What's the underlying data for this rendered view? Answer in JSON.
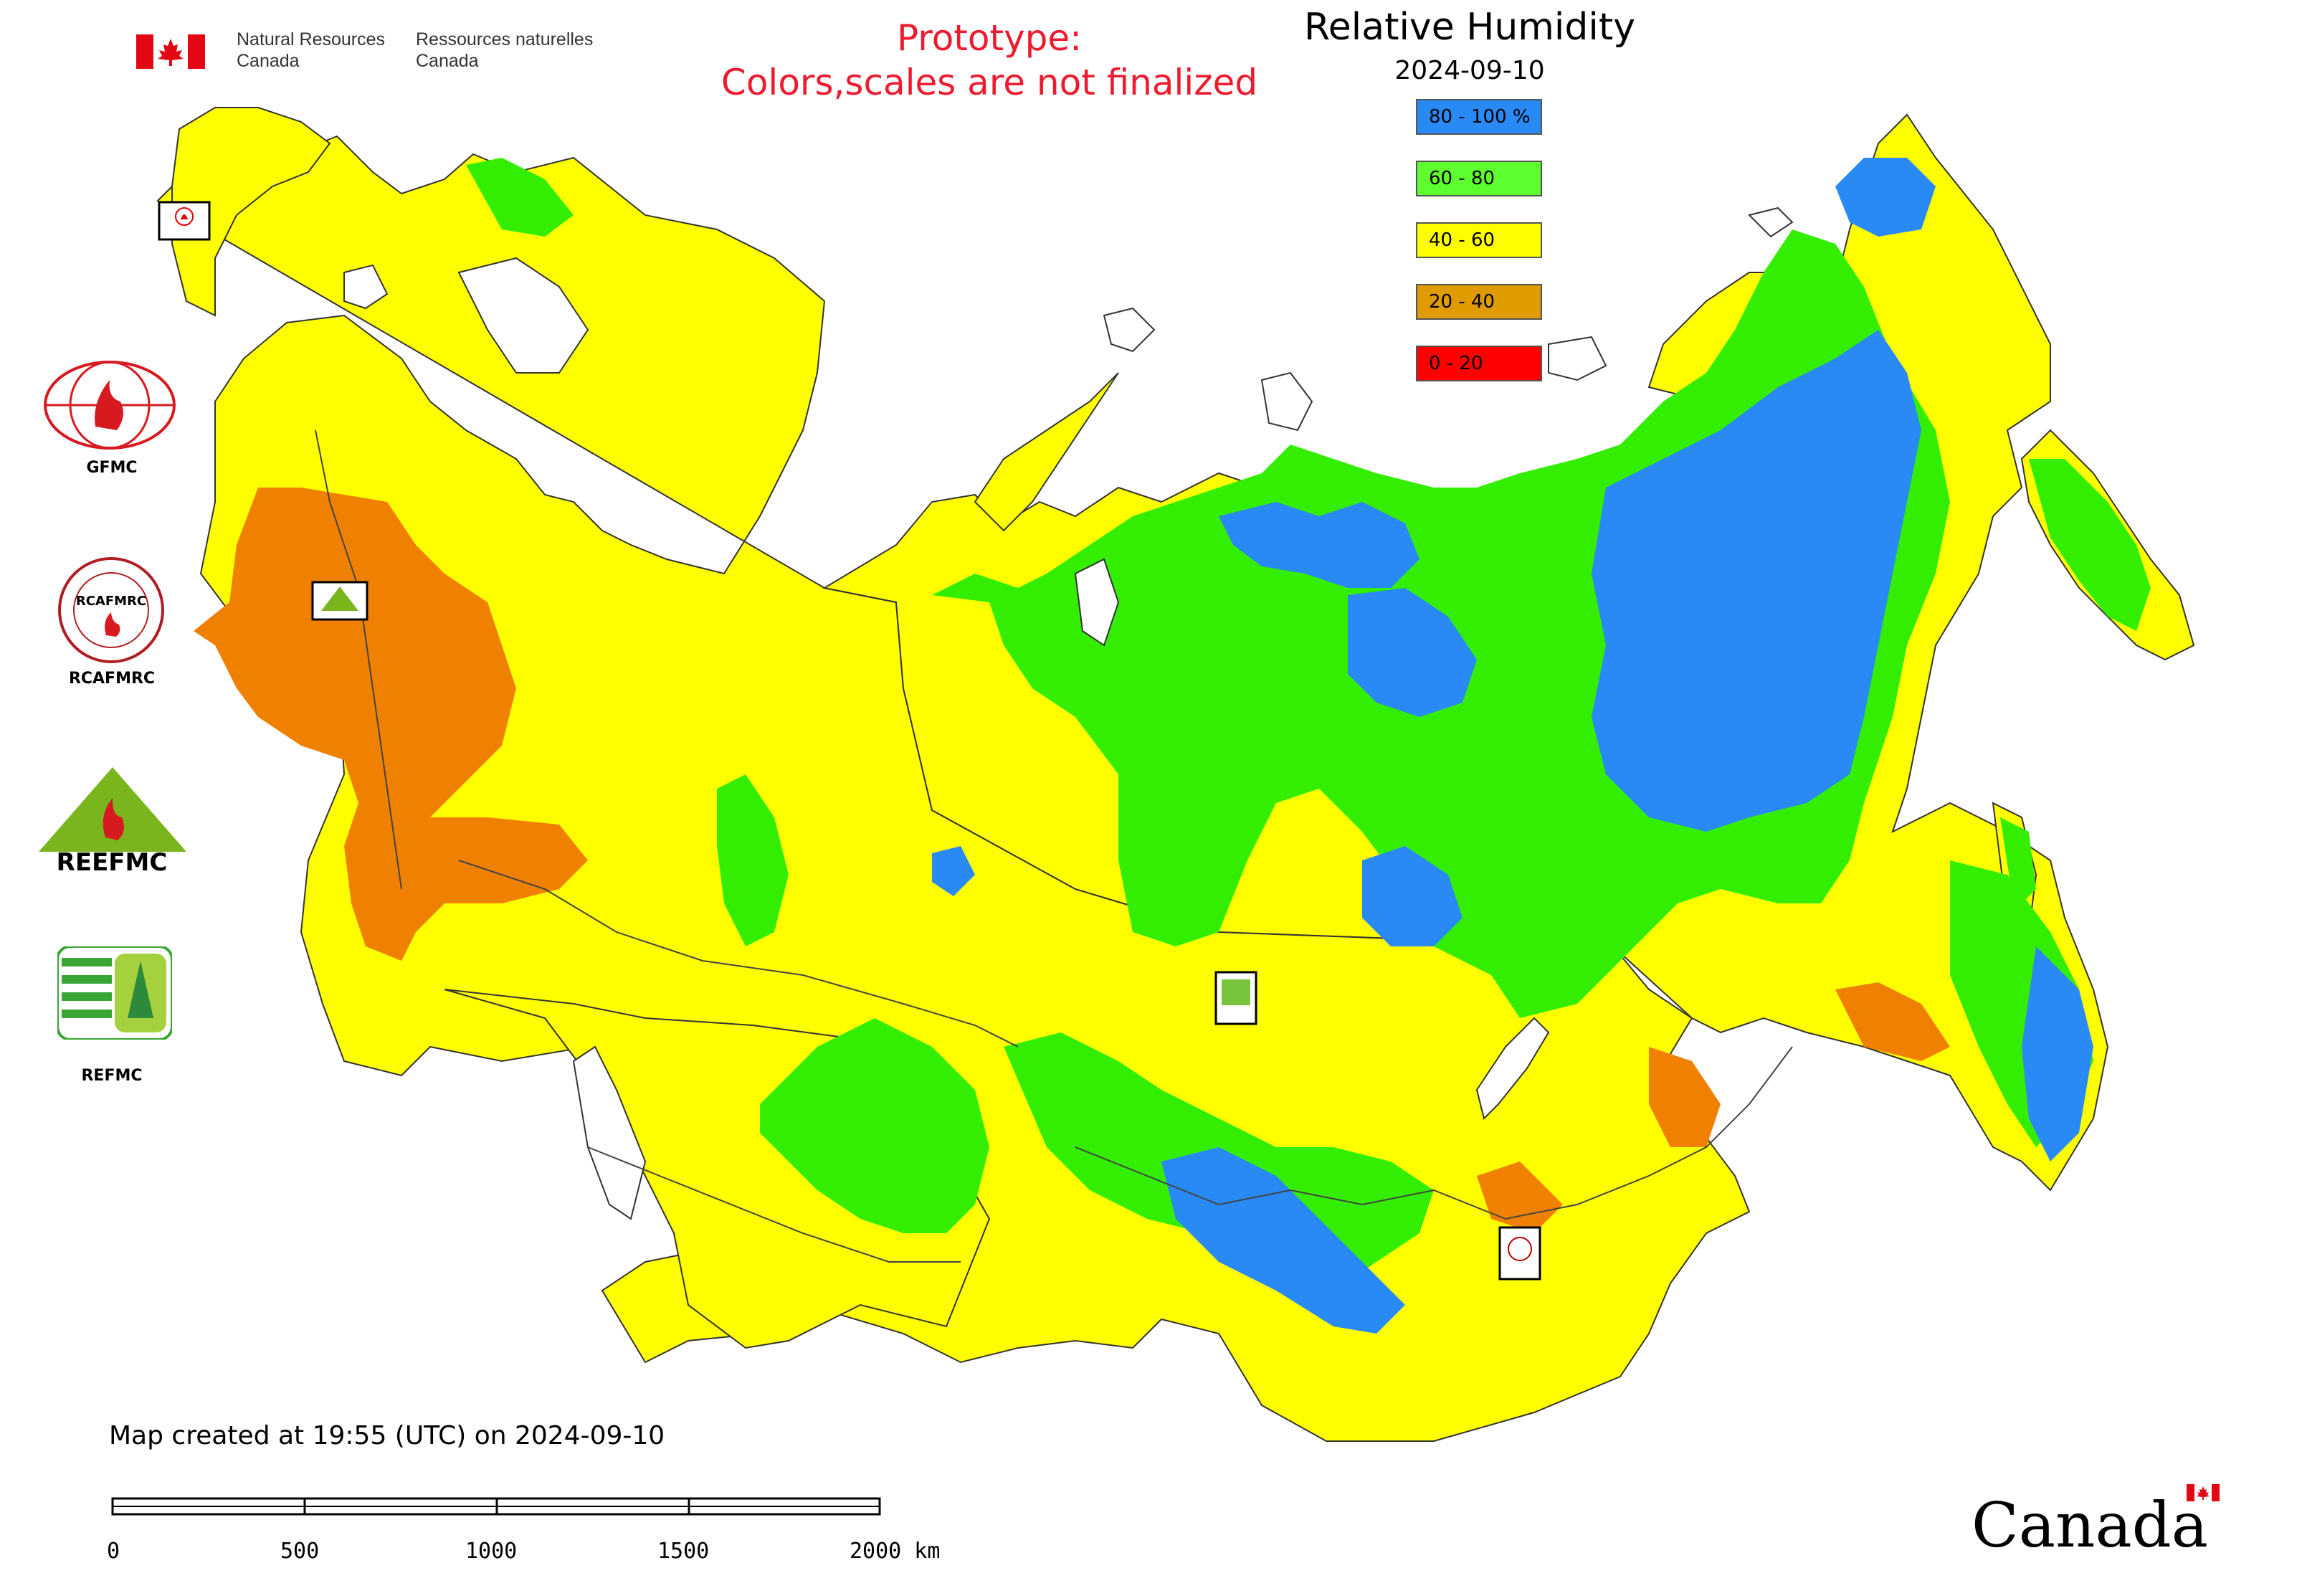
{
  "header": {
    "nrcan_en_line1": "Natural Resources",
    "nrcan_en_line2": "Canada",
    "nrcan_fr_line1": "Ressources naturelles",
    "nrcan_fr_line2": "Canada",
    "prototype_line1": "Prototype:",
    "prototype_line2": "Colors,scales are not finalized",
    "title": "Relative Humidity",
    "date": "2024-09-10"
  },
  "legend": {
    "items": [
      {
        "label": "80 - 100 %",
        "color": "#2a8af5"
      },
      {
        "label": "60 - 80",
        "color": "#5dff2e"
      },
      {
        "label": "40 - 60",
        "color": "#ffff00"
      },
      {
        "label": "20 - 40",
        "color": "#e09b00"
      },
      {
        "label": "0 - 20",
        "color": "#ff0000"
      }
    ]
  },
  "side_logos": {
    "gfmc_caption": "GFMC",
    "rcafmrc_caption": "RCAFMRC",
    "reefmc_caption": "REEFMC",
    "refmc_caption": "REFMC",
    "reefmc_wordmark": "REEFMC",
    "rcafmrc_wordmark": "RCAFMRC"
  },
  "map_markers": {
    "gfmc": "GFMC",
    "reefmc": "REEFMC",
    "refmc": "REFMC",
    "rcafmrc": "RCAFMRC"
  },
  "map_colors": {
    "very_humid": "#2a8af5",
    "humid": "#33ee00",
    "moderate": "#ffff00",
    "dry": "#f08000",
    "very_dry": "#ff0000",
    "water": "#ffffff",
    "border": "#444444"
  },
  "footer": {
    "created": "Map created at 19:55 (UTC) on 2024-09-10",
    "scale_labels": [
      "0",
      "500",
      "1000",
      "1500",
      "2000 km"
    ],
    "wordmark": "Canada"
  }
}
